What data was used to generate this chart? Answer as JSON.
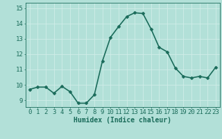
{
  "x": [
    0,
    1,
    2,
    3,
    4,
    5,
    6,
    7,
    8,
    9,
    10,
    11,
    12,
    13,
    14,
    15,
    16,
    17,
    18,
    19,
    20,
    21,
    22,
    23
  ],
  "y": [
    9.7,
    9.85,
    9.85,
    9.45,
    9.9,
    9.55,
    8.8,
    8.8,
    9.35,
    11.55,
    13.1,
    13.8,
    14.45,
    14.7,
    14.65,
    13.65,
    12.45,
    12.15,
    11.1,
    10.55,
    10.45,
    10.55,
    10.45,
    11.15
  ],
  "line_color": "#1a6b5a",
  "marker_color": "#1a6b5a",
  "bg_color": "#b2e0d8",
  "grid_color": "#d0ede8",
  "xlabel": "Humidex (Indice chaleur)",
  "ylabel_ticks": [
    9,
    10,
    11,
    12,
    13,
    14,
    15
  ],
  "xlim": [
    -0.5,
    23.5
  ],
  "ylim": [
    8.55,
    15.35
  ],
  "tick_color": "#1a6b5a",
  "label_color": "#1a6b5a",
  "font_size_label": 7,
  "font_size_tick": 6.5,
  "line_width": 1.2,
  "marker_size": 2.5
}
